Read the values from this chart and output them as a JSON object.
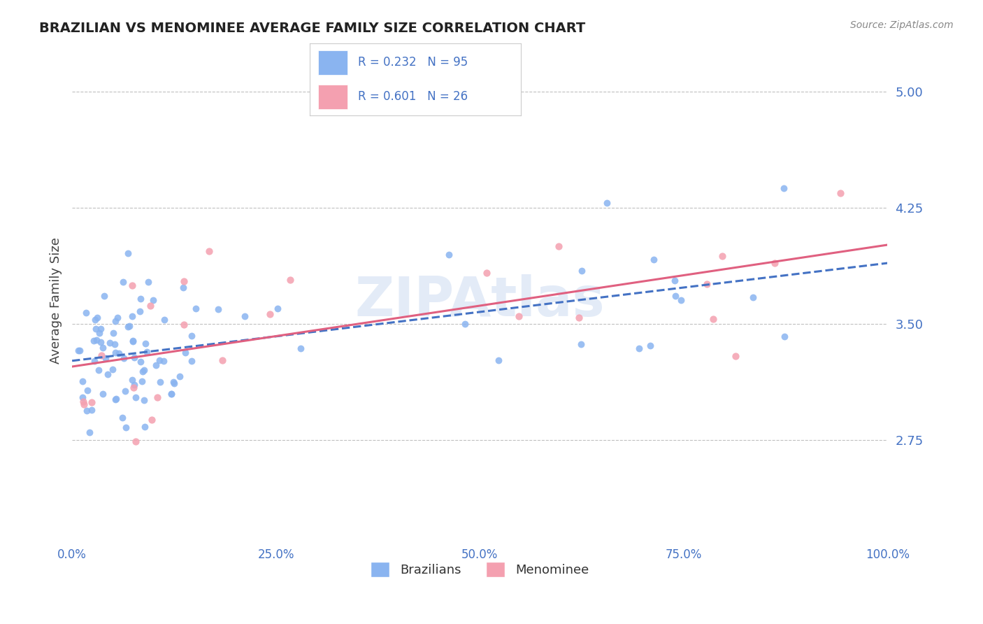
{
  "title": "BRAZILIAN VS MENOMINEE AVERAGE FAMILY SIZE CORRELATION CHART",
  "source_text": "Source: ZipAtlas.com",
  "ylabel": "Average Family Size",
  "yticks": [
    2.75,
    3.5,
    4.25,
    5.0
  ],
  "xlim": [
    0.0,
    1.0
  ],
  "ylim": [
    2.1,
    5.2
  ],
  "brazilian_color": "#8ab4f0",
  "menominee_color": "#f4a0b0",
  "brazilian_line_color": "#4472c4",
  "menominee_line_color": "#e06080",
  "R_brazilian": 0.232,
  "N_brazilian": 95,
  "R_menominee": 0.601,
  "N_menominee": 26,
  "background_color": "#ffffff",
  "grid_color": "#c0c0c0",
  "tick_color": "#4472c4",
  "title_color": "#222222",
  "source_color": "#888888",
  "watermark_color": "#c8d8f0",
  "legend_label_color": "#4472c4"
}
